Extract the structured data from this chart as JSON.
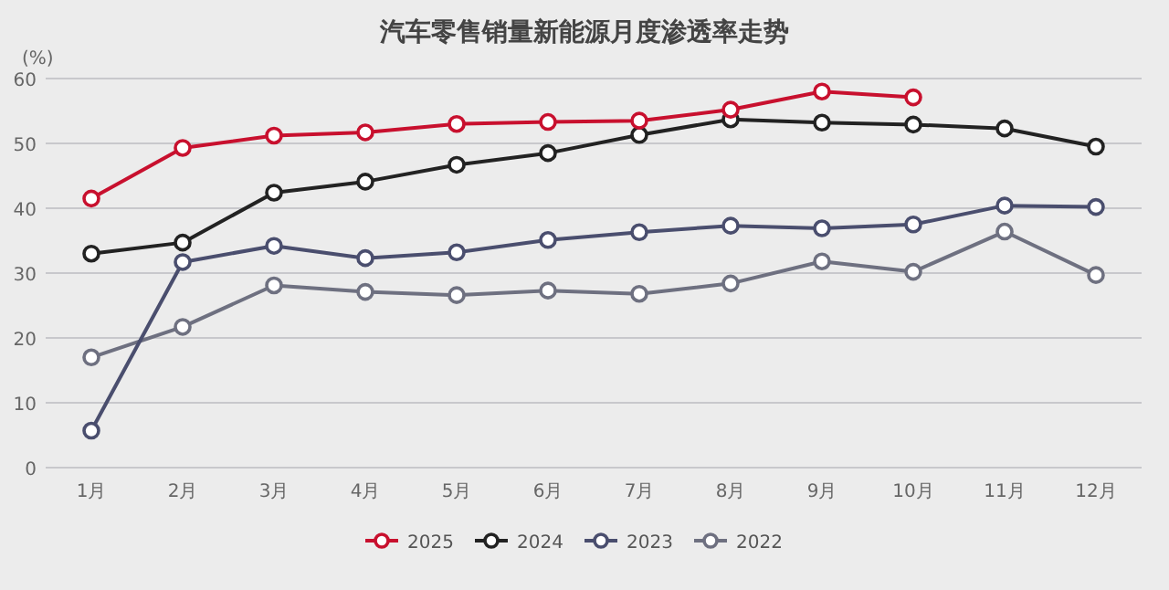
{
  "chart_data": {
    "type": "line",
    "title": "汽车零售销量新能源月度渗透率走势",
    "ylabel": "(%)",
    "categories": [
      "1月",
      "2月",
      "3月",
      "4月",
      "5月",
      "6月",
      "7月",
      "8月",
      "9月",
      "10月",
      "11月",
      "12月"
    ],
    "series": [
      {
        "name": "2025",
        "color": "#c8102e",
        "values": [
          41.5,
          49.3,
          51.2,
          51.7,
          53.0,
          53.3,
          53.5,
          55.2,
          58.0,
          57.1,
          null,
          null
        ]
      },
      {
        "name": "2024",
        "color": "#222222",
        "values": [
          33.0,
          34.7,
          42.4,
          44.1,
          46.7,
          48.5,
          51.3,
          53.7,
          53.2,
          52.9,
          52.3,
          49.5
        ]
      },
      {
        "name": "2023",
        "color": "#4a4e6e",
        "values": [
          5.7,
          31.7,
          34.2,
          32.3,
          33.2,
          35.1,
          36.3,
          37.3,
          36.9,
          37.5,
          40.4,
          40.2
        ]
      },
      {
        "name": "2022",
        "color": "#6e7080",
        "values": [
          17.0,
          21.7,
          28.1,
          27.1,
          26.6,
          27.3,
          26.8,
          28.4,
          31.8,
          30.2,
          36.4,
          29.7
        ]
      }
    ],
    "ylim": [
      0,
      60
    ],
    "yticks": [
      0,
      10,
      20,
      30,
      40,
      50,
      60
    ],
    "grid": "y",
    "legend": "bottom",
    "marker": "circle",
    "line_style": "solid"
  }
}
